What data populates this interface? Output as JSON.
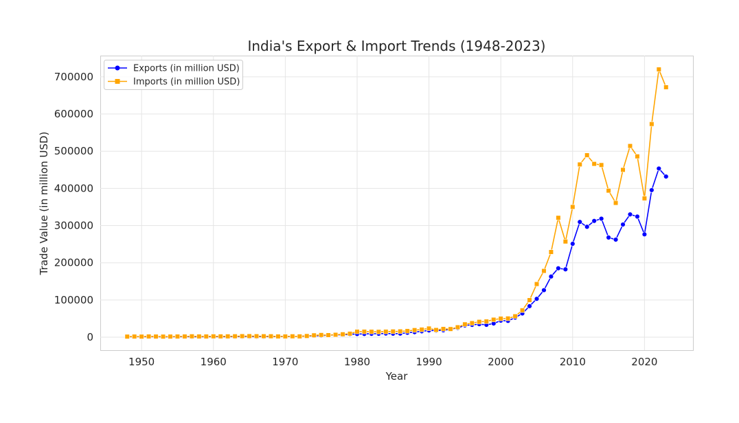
{
  "chart_data": {
    "type": "line",
    "title": "India's Export & Import Trends (1948-2023)",
    "xlabel": "Year",
    "ylabel": "Trade Value (in million USD)",
    "xlim": [
      1944.25,
      2026.75
    ],
    "ylim": [
      -35000,
      757000
    ],
    "xticks": [
      1950,
      1960,
      1970,
      1980,
      1990,
      2000,
      2010,
      2020
    ],
    "yticks": [
      0,
      100000,
      200000,
      300000,
      400000,
      500000,
      600000,
      700000
    ],
    "grid": true,
    "legend_position": "top-left",
    "x": [
      1948,
      1949,
      1950,
      1951,
      1952,
      1953,
      1954,
      1955,
      1956,
      1957,
      1958,
      1959,
      1960,
      1961,
      1962,
      1963,
      1964,
      1965,
      1966,
      1967,
      1968,
      1969,
      1970,
      1971,
      1972,
      1973,
      1974,
      1975,
      1976,
      1977,
      1978,
      1979,
      1980,
      1981,
      1982,
      1983,
      1984,
      1985,
      1986,
      1987,
      1988,
      1989,
      1990,
      1991,
      1992,
      1993,
      1994,
      1995,
      1996,
      1997,
      1998,
      1999,
      2000,
      2001,
      2002,
      2003,
      2004,
      2005,
      2006,
      2007,
      2008,
      2009,
      2010,
      2011,
      2012,
      2013,
      2014,
      2015,
      2016,
      2017,
      2018,
      2019,
      2020,
      2021,
      2022,
      2023
    ],
    "series": [
      {
        "name": "Exports (in million USD)",
        "color": "#0000ff",
        "marker": "circle",
        "values": [
          1300,
          1300,
          1270,
          1600,
          1300,
          1200,
          1200,
          1300,
          1300,
          1400,
          1200,
          1300,
          1300,
          1400,
          1400,
          1600,
          1700,
          1700,
          1600,
          1600,
          1800,
          1800,
          2000,
          2000,
          2400,
          2900,
          3900,
          4400,
          5500,
          6300,
          6600,
          7800,
          8500,
          8700,
          9100,
          9300,
          9800,
          9500,
          9700,
          11900,
          13500,
          15800,
          18100,
          17900,
          18500,
          21600,
          25000,
          31700,
          33100,
          35000,
          33200,
          36800,
          44600,
          43800,
          52700,
          63800,
          83500,
          103100,
          126400,
          163100,
          185300,
          182400,
          251100,
          309800,
          296800,
          312600,
          318600,
          268000,
          262300,
          302900,
          330100,
          324300,
          276500,
          395400,
          453400,
          431900
        ]
      },
      {
        "name": "Imports (in million USD)",
        "color": "#ffa500",
        "marker": "square",
        "values": [
          1600,
          1800,
          1600,
          2000,
          1800,
          1600,
          1700,
          1900,
          2000,
          2400,
          2000,
          2000,
          2300,
          2200,
          2300,
          2500,
          2800,
          2900,
          2700,
          2600,
          2500,
          2100,
          2100,
          2400,
          2200,
          3200,
          5100,
          6000,
          5600,
          6600,
          7900,
          9500,
          15000,
          15000,
          14800,
          14500,
          15000,
          15400,
          15700,
          16800,
          19100,
          20600,
          23500,
          19500,
          22300,
          21900,
          26800,
          34700,
          37900,
          41400,
          42400,
          47200,
          50100,
          50400,
          56300,
          72400,
          99700,
          142900,
          178200,
          229000,
          321000,
          257200,
          350200,
          464500,
          489300,
          466000,
          462900,
          394000,
          361000,
          449900,
          514100,
          486100,
          373200,
          573000,
          720000,
          672000
        ]
      }
    ]
  }
}
